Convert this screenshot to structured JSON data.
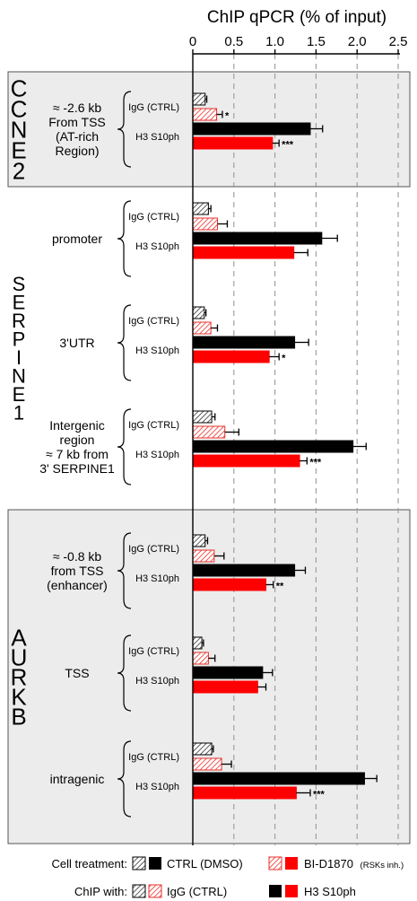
{
  "chart_data": {
    "type": "bar",
    "title": "ChIP qPCR (% of input)",
    "xlim": [
      0,
      2.5
    ],
    "x_ticks": [
      "0",
      "0.5",
      "1.0",
      "1.5",
      "2.0",
      "2.5"
    ],
    "grid": "vertical dashed",
    "rows": [
      "IgG (CTRL)",
      "H3 S10ph"
    ],
    "series": [
      {
        "name": "CTRL (DMSO)",
        "pattern": "solid",
        "colors": {
          "IgG (CTRL)": "#bdbdbd",
          "H3 S10ph": "#000000"
        }
      },
      {
        "name": "BI-D1870",
        "name_suffix": "(RSKs inh.)",
        "pattern": "hatched",
        "colors": {
          "IgG (CTRL)": "#f4a3a3",
          "H3 S10ph": "#ff0000"
        }
      }
    ],
    "genes": [
      {
        "name": "CCNE2",
        "letters": [
          "C",
          "C",
          "N",
          "E",
          "2"
        ],
        "shaded": true,
        "regions": [
          {
            "label": [
              "≈ -2.6 kb",
              "From TSS",
              "(AT-rich",
              "Region)"
            ],
            "igg_ctrl": 0.15,
            "igg_ctrl_err": 0.02,
            "igg_bi": 0.29,
            "igg_bi_err": 0.07,
            "igg_sig": "*",
            "h3_ctrl": 1.43,
            "h3_ctrl_err": 0.15,
            "h3_bi": 0.97,
            "h3_bi_err": 0.08,
            "h3_sig": "***"
          }
        ]
      },
      {
        "name": "SERPINE1",
        "letters": [
          "S",
          "E",
          "R",
          "P",
          "I",
          "N",
          "E",
          "1"
        ],
        "shaded": false,
        "regions": [
          {
            "label": [
              "promoter"
            ],
            "igg_ctrl": 0.19,
            "igg_ctrl_err": 0.03,
            "igg_bi": 0.3,
            "igg_bi_err": 0.12,
            "igg_sig": "",
            "h3_ctrl": 1.57,
            "h3_ctrl_err": 0.19,
            "h3_bi": 1.23,
            "h3_bi_err": 0.17,
            "h3_sig": ""
          },
          {
            "label": [
              "3'UTR"
            ],
            "igg_ctrl": 0.14,
            "igg_ctrl_err": 0.02,
            "igg_bi": 0.22,
            "igg_bi_err": 0.08,
            "igg_sig": "",
            "h3_ctrl": 1.24,
            "h3_ctrl_err": 0.17,
            "h3_bi": 0.93,
            "h3_bi_err": 0.12,
            "h3_sig": "*"
          },
          {
            "label": [
              "Intergenic",
              "region",
              "≈ 7 kb from",
              "3' SERPINE1"
            ],
            "igg_ctrl": 0.23,
            "igg_ctrl_err": 0.04,
            "igg_bi": 0.39,
            "igg_bi_err": 0.17,
            "igg_sig": "",
            "h3_ctrl": 1.95,
            "h3_ctrl_err": 0.16,
            "h3_bi": 1.3,
            "h3_bi_err": 0.09,
            "h3_sig": "***"
          }
        ]
      },
      {
        "name": "AURKB",
        "letters": [
          "A",
          "U",
          "R",
          "K",
          "B"
        ],
        "shaded": true,
        "regions": [
          {
            "label": [
              "≈ -0.8 kb",
              "from TSS",
              "(enhancer)"
            ],
            "igg_ctrl": 0.15,
            "igg_ctrl_err": 0.03,
            "igg_bi": 0.26,
            "igg_bi_err": 0.12,
            "igg_sig": "",
            "h3_ctrl": 1.24,
            "h3_ctrl_err": 0.13,
            "h3_bi": 0.89,
            "h3_bi_err": 0.09,
            "h3_sig": "**"
          },
          {
            "label": [
              "TSS"
            ],
            "igg_ctrl": 0.11,
            "igg_ctrl_err": 0.02,
            "igg_bi": 0.19,
            "igg_bi_err": 0.08,
            "igg_sig": "",
            "h3_ctrl": 0.85,
            "h3_ctrl_err": 0.12,
            "h3_bi": 0.79,
            "h3_bi_err": 0.1,
            "h3_sig": ""
          },
          {
            "label": [
              "intragenic"
            ],
            "igg_ctrl": 0.23,
            "igg_ctrl_err": 0.02,
            "igg_bi": 0.35,
            "igg_bi_err": 0.12,
            "igg_sig": "",
            "h3_ctrl": 2.09,
            "h3_ctrl_err": 0.15,
            "h3_bi": 1.26,
            "h3_bi_err": 0.17,
            "h3_sig": "***"
          }
        ]
      }
    ],
    "legend": {
      "treatment_label": "Cell treatment:",
      "chip_label": "ChIP with:",
      "ctrl_label": "CTRL (DMSO)",
      "bi_label": "BI-D1870",
      "bi_suffix": "(RSKs inh.)",
      "igg_label": "IgG (CTRL)",
      "h3_label": "H3 S10ph"
    }
  }
}
